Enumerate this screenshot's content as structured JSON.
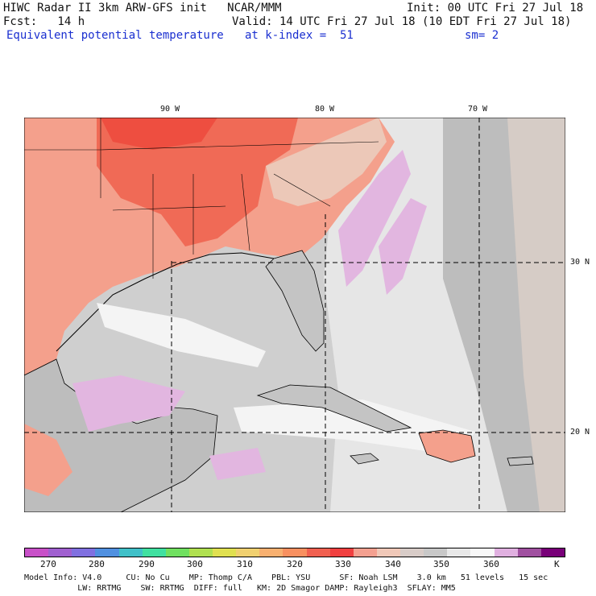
{
  "header": {
    "title": "HIWC Radar II 3km ARW-GFS init   NCAR/MMM",
    "init": "Init: 00 UTC Fri 27 Jul 18",
    "fcst": "Fcst:   14 h",
    "valid": "Valid: 14 UTC Fri 27 Jul 18 (10 EDT Fri 27 Jul 18)",
    "field": "Equivalent potential temperature",
    "level": "at k-index =  51",
    "smooth": "sm= 2"
  },
  "map": {
    "lon_labels": [
      "90 W",
      "80 W",
      "70 W"
    ],
    "lat_labels": [
      "30 N",
      "20 N"
    ],
    "colors": {
      "ocean": "#cfcfcf",
      "ocean_dark": "#b7b7b7",
      "land_warm": "#f4a08c",
      "land_hot": "#f05a48",
      "land_tan": "#ecc8b8",
      "atlantic": "#e4e4e4",
      "purple": "#e2b6e0",
      "white_band": "#f4f4f4",
      "right_tan": "#d6ccc6"
    }
  },
  "colorbar": {
    "colors": [
      "#c850c8",
      "#a060d0",
      "#8070e0",
      "#5090e0",
      "#40c0c8",
      "#40e0a0",
      "#70e060",
      "#b0e050",
      "#e0e050",
      "#f0d070",
      "#f8b070",
      "#f89060",
      "#f06050",
      "#f04040",
      "#f4a090",
      "#f0c8b8",
      "#d8ccc8",
      "#c8c8c8",
      "#e8e8e8",
      "#f8f8f8",
      "#e0b0e0",
      "#a050a0",
      "#780078"
    ],
    "tick_labels": [
      "270",
      "280",
      "290",
      "300",
      "310",
      "320",
      "330",
      "340",
      "350",
      "360",
      "K"
    ]
  },
  "footer": {
    "line1": "Model Info: V4.0     CU: No Cu    MP: Thomp C/A    PBL: YSU      SF: Noah LSM    3.0 km   51 levels   15 sec",
    "line2": "           LW: RRTMG    SW: RRTMG  DIFF: full   KM: 2D Smagor DAMP: Rayleigh3  SFLAY: MM5"
  }
}
